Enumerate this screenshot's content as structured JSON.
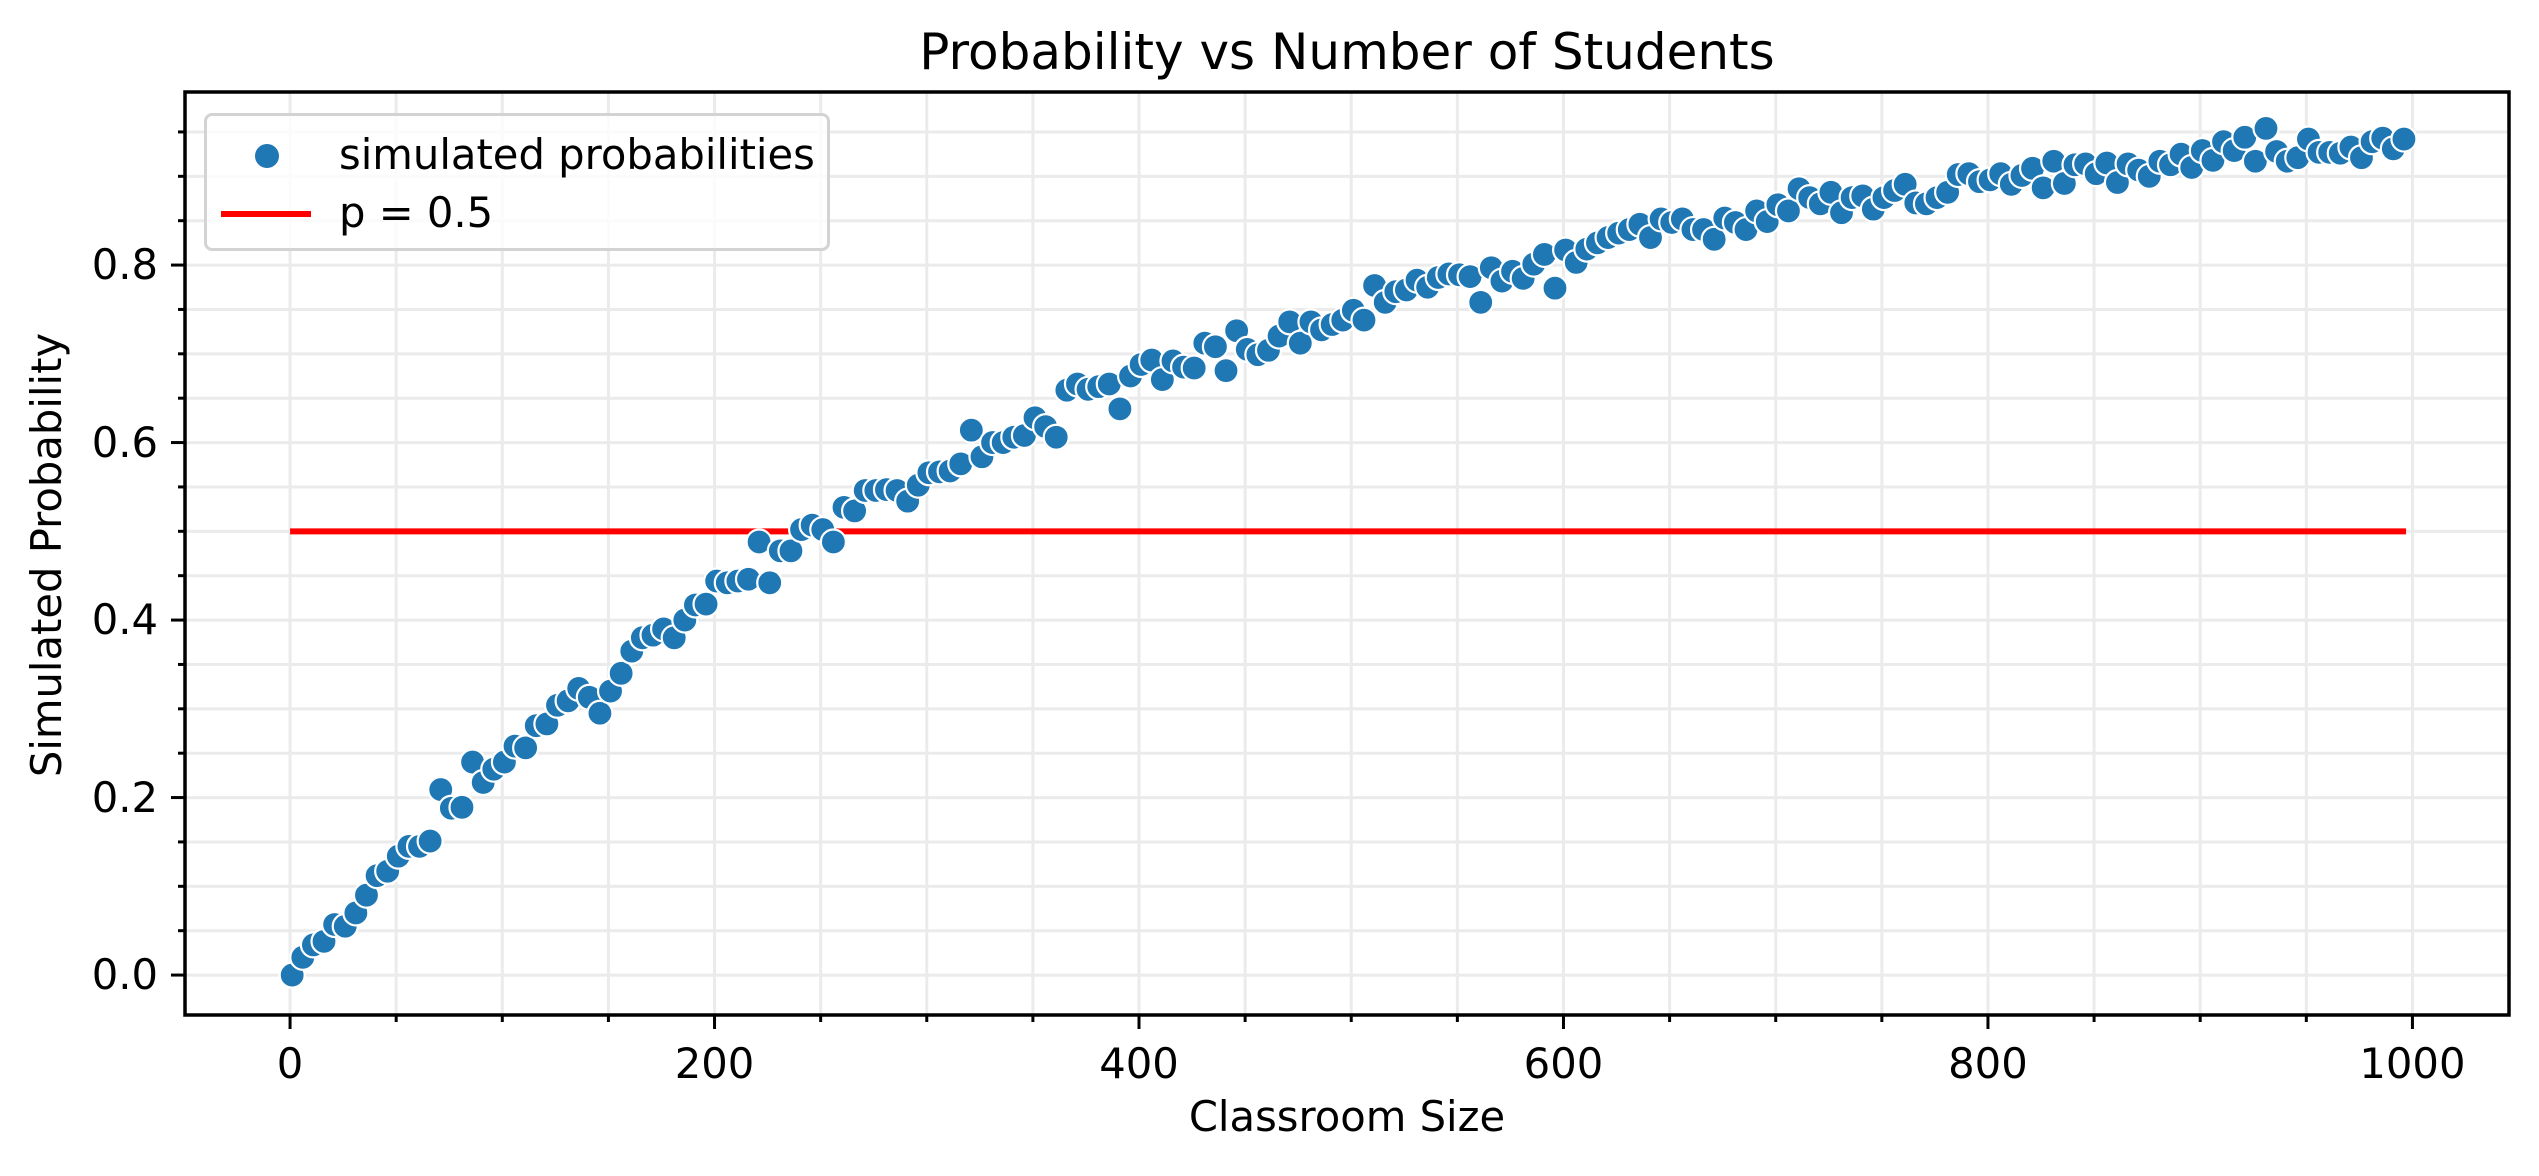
{
  "chart_data": {
    "type": "scatter",
    "title": "Probability vs Number of Students",
    "xlabel": "Classroom Size",
    "ylabel": "Simulated Probability",
    "xlim": [
      -49.5,
      1045.5
    ],
    "ylim": [
      -0.045,
      0.995
    ],
    "xticks": [
      0,
      200,
      400,
      600,
      800,
      1000
    ],
    "xtick_labels": [
      "0",
      "200",
      "400",
      "600",
      "800",
      "1000"
    ],
    "xminor_step": 50,
    "yticks": [
      0.0,
      0.2,
      0.4,
      0.6,
      0.8
    ],
    "ytick_labels": [
      "0.0",
      "0.2",
      "0.4",
      "0.6",
      "0.8"
    ],
    "yminor_step": 0.05,
    "grid": true,
    "grid_minor": true,
    "legend_position": "upper left",
    "series": [
      {
        "name": "simulated probabilities",
        "kind": "scatter",
        "color": "#1f77b4",
        "x": [
          1,
          6,
          11,
          16,
          21,
          26,
          31,
          36,
          41,
          46,
          51,
          56,
          61,
          66,
          71,
          76,
          81,
          86,
          91,
          96,
          101,
          106,
          111,
          116,
          121,
          126,
          131,
          136,
          141,
          146,
          151,
          156,
          161,
          166,
          171,
          176,
          181,
          186,
          191,
          196,
          201,
          206,
          211,
          216,
          221,
          226,
          231,
          236,
          241,
          246,
          251,
          256,
          261,
          266,
          271,
          276,
          281,
          286,
          291,
          296,
          301,
          306,
          311,
          316,
          321,
          326,
          331,
          336,
          341,
          346,
          351,
          356,
          361,
          366,
          371,
          376,
          381,
          386,
          391,
          396,
          401,
          406,
          411,
          416,
          421,
          426,
          431,
          436,
          441,
          446,
          451,
          456,
          461,
          466,
          471,
          476,
          481,
          486,
          491,
          496,
          501,
          506,
          511,
          516,
          521,
          526,
          531,
          536,
          541,
          546,
          551,
          556,
          561,
          566,
          571,
          576,
          581,
          586,
          591,
          596,
          601,
          606,
          611,
          616,
          621,
          626,
          631,
          636,
          641,
          646,
          651,
          656,
          661,
          666,
          671,
          676,
          681,
          686,
          691,
          696,
          701,
          706,
          711,
          716,
          721,
          726,
          731,
          736,
          741,
          746,
          751,
          756,
          761,
          766,
          771,
          776,
          781,
          786,
          791,
          796,
          801,
          806,
          811,
          816,
          821,
          826,
          831,
          836,
          841,
          846,
          851,
          856,
          861,
          866,
          871,
          876,
          881,
          886,
          891,
          896,
          901,
          906,
          911,
          916,
          921,
          926,
          931,
          936,
          941,
          946,
          951,
          956,
          961,
          966,
          971,
          976,
          981,
          986,
          991,
          996
        ],
        "values": [
          0.0,
          0.02,
          0.034,
          0.038,
          0.057,
          0.055,
          0.07,
          0.09,
          0.112,
          0.117,
          0.134,
          0.145,
          0.145,
          0.151,
          0.209,
          0.188,
          0.189,
          0.24,
          0.217,
          0.232,
          0.24,
          0.258,
          0.256,
          0.281,
          0.283,
          0.304,
          0.309,
          0.323,
          0.313,
          0.295,
          0.32,
          0.34,
          0.365,
          0.38,
          0.383,
          0.39,
          0.38,
          0.4,
          0.417,
          0.418,
          0.444,
          0.442,
          0.444,
          0.446,
          0.488,
          0.442,
          0.478,
          0.478,
          0.502,
          0.507,
          0.502,
          0.488,
          0.527,
          0.523,
          0.546,
          0.546,
          0.547,
          0.546,
          0.534,
          0.552,
          0.566,
          0.567,
          0.568,
          0.576,
          0.614,
          0.584,
          0.6,
          0.6,
          0.606,
          0.608,
          0.628,
          0.618,
          0.606,
          0.659,
          0.666,
          0.66,
          0.663,
          0.666,
          0.638,
          0.675,
          0.688,
          0.693,
          0.671,
          0.692,
          0.685,
          0.684,
          0.712,
          0.708,
          0.681,
          0.726,
          0.705,
          0.699,
          0.704,
          0.72,
          0.736,
          0.712,
          0.736,
          0.727,
          0.733,
          0.738,
          0.749,
          0.738,
          0.777,
          0.758,
          0.77,
          0.772,
          0.783,
          0.775,
          0.786,
          0.79,
          0.789,
          0.787,
          0.758,
          0.797,
          0.782,
          0.793,
          0.785,
          0.801,
          0.812,
          0.774,
          0.817,
          0.803,
          0.818,
          0.825,
          0.831,
          0.836,
          0.84,
          0.846,
          0.831,
          0.852,
          0.848,
          0.852,
          0.84,
          0.84,
          0.829,
          0.853,
          0.848,
          0.84,
          0.861,
          0.849,
          0.868,
          0.861,
          0.886,
          0.876,
          0.869,
          0.882,
          0.859,
          0.876,
          0.878,
          0.863,
          0.876,
          0.884,
          0.891,
          0.87,
          0.869,
          0.876,
          0.882,
          0.902,
          0.903,
          0.894,
          0.896,
          0.903,
          0.891,
          0.901,
          0.909,
          0.887,
          0.917,
          0.892,
          0.913,
          0.914,
          0.903,
          0.915,
          0.893,
          0.914,
          0.907,
          0.9,
          0.917,
          0.913,
          0.925,
          0.91,
          0.929,
          0.918,
          0.939,
          0.929,
          0.944,
          0.917,
          0.954,
          0.928,
          0.917,
          0.921,
          0.942,
          0.927,
          0.927,
          0.926,
          0.933,
          0.921,
          0.939,
          0.943,
          0.931,
          0.942
        ]
      },
      {
        "name": "p = 0.5",
        "kind": "line",
        "color": "#ff0000",
        "x": [
          0,
          997
        ],
        "values": [
          0.5,
          0.5
        ]
      }
    ]
  },
  "figure": {
    "title": "Probability vs Number of Students",
    "xlabel": "Classroom Size",
    "ylabel": "Simulated Probability",
    "xtick_labels": [
      "0",
      "200",
      "400",
      "600",
      "800",
      "1000"
    ],
    "ytick_labels": [
      "0.0",
      "0.2",
      "0.4",
      "0.6",
      "0.8"
    ],
    "legend": {
      "items": [
        {
          "label": "simulated probabilities",
          "icon": "scatter-marker-icon",
          "color": "#1f77b4"
        },
        {
          "label": "p = 0.5",
          "icon": "line-sample-icon",
          "color": "#ff0000"
        }
      ]
    }
  }
}
